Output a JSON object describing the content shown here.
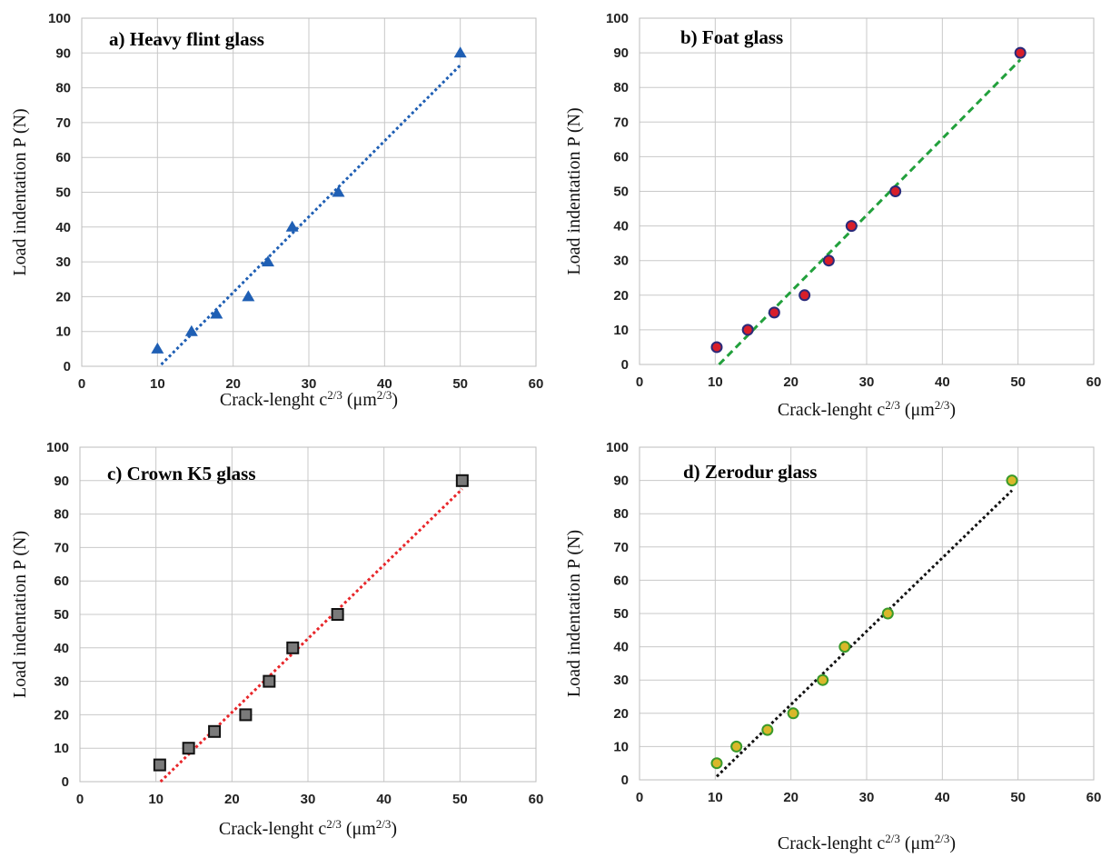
{
  "chart_data": [
    {
      "type": "scatter",
      "title": "a) Heavy flint glass",
      "xlabel": "Crack-lenght c",
      "xlabel_sup": "2/3",
      "xlabel_unit": " (μm",
      "xlabel_unit_sup": "2/3",
      "xlabel_close": ")",
      "ylabel": "Load indentation  P (N)",
      "xlim": [
        0,
        60
      ],
      "ylim": [
        0,
        100
      ],
      "xticks": [
        "0",
        "10",
        "20",
        "30",
        "40",
        "50",
        "60"
      ],
      "yticks": [
        "0",
        "10",
        "20",
        "30",
        "40",
        "50",
        "60",
        "70",
        "80",
        "90",
        "100"
      ],
      "grid": true,
      "marker": "triangle",
      "marker_color": "#1f5fb4",
      "trend_color": "#1f5fb4",
      "series": [
        {
          "x": [
            10,
            14.5,
            17.8,
            22,
            24.6,
            27.8,
            33.9,
            50
          ],
          "y": [
            5,
            10,
            15,
            20,
            30,
            40,
            50,
            90
          ]
        }
      ],
      "trendline": {
        "x": [
          10.5,
          50
        ],
        "y": [
          0.5,
          86.5
        ]
      }
    },
    {
      "type": "scatter",
      "title": "b) Foat glass",
      "xlabel": "Crack-lenght c",
      "xlabel_sup": "2/3",
      "xlabel_unit": " (μm",
      "xlabel_unit_sup": "2/3",
      "xlabel_close": ")",
      "ylabel": "Load indentation  P (N)",
      "xlim": [
        0,
        60
      ],
      "ylim": [
        0,
        100
      ],
      "xticks": [
        "0",
        "10",
        "20",
        "30",
        "40",
        "50",
        "60"
      ],
      "yticks": [
        "0",
        "10",
        "20",
        "30",
        "40",
        "50",
        "60",
        "70",
        "80",
        "90",
        "100"
      ],
      "grid": true,
      "marker": "circle",
      "marker_color": "#d81e2a",
      "marker_edge": "#2a2a7a",
      "trend_color": "#22a03c",
      "series": [
        {
          "x": [
            10.2,
            14.3,
            17.8,
            21.8,
            25,
            28,
            33.8,
            50.3
          ],
          "y": [
            5,
            10,
            15,
            20,
            30,
            40,
            50,
            90
          ]
        }
      ],
      "trendline": {
        "x": [
          10.5,
          50.3
        ],
        "y": [
          0,
          88
        ]
      }
    },
    {
      "type": "scatter",
      "title": "c) Crown K5 glass",
      "xlabel": "Crack-lenght c",
      "xlabel_sup": "2/3",
      "xlabel_unit": " (μm",
      "xlabel_unit_sup": "2/3",
      "xlabel_close": ")",
      "ylabel": "Load indentation  P (N)",
      "xlim": [
        0,
        60
      ],
      "ylim": [
        0,
        100
      ],
      "xticks": [
        "0",
        "10",
        "20",
        "30",
        "40",
        "50",
        "60"
      ],
      "yticks": [
        "0",
        "10",
        "20",
        "30",
        "40",
        "50",
        "60",
        "70",
        "80",
        "90",
        "100"
      ],
      "grid": true,
      "marker": "square",
      "marker_color": "#7a7a7a",
      "marker_edge": "#111111",
      "trend_color": "#e8262a",
      "series": [
        {
          "x": [
            10.5,
            14.3,
            17.7,
            21.8,
            24.9,
            28,
            33.9,
            50.3
          ],
          "y": [
            5,
            10,
            15,
            20,
            30,
            40,
            50,
            90
          ]
        }
      ],
      "trendline": {
        "x": [
          10.6,
          50.3
        ],
        "y": [
          0,
          87.5
        ]
      }
    },
    {
      "type": "scatter",
      "title": "d) Zerodur glass",
      "xlabel": "Crack-lenght c",
      "xlabel_sup": "2/3",
      "xlabel_unit": " (μm",
      "xlabel_unit_sup": "2/3",
      "xlabel_close": ")",
      "ylabel": "Load indentation  P (N)",
      "xlim": [
        0,
        60
      ],
      "ylim": [
        0,
        100
      ],
      "xticks": [
        "0",
        "10",
        "20",
        "30",
        "40",
        "50",
        "60"
      ],
      "yticks": [
        "0",
        "10",
        "20",
        "30",
        "40",
        "50",
        "60",
        "70",
        "80",
        "90",
        "100"
      ],
      "grid": true,
      "marker": "circle",
      "marker_color": "#d9b82a",
      "marker_edge": "#3a9a2a",
      "trend_color": "#111111",
      "series": [
        {
          "x": [
            10.2,
            12.8,
            16.9,
            20.3,
            24.2,
            27.1,
            32.8,
            49.2
          ],
          "y": [
            5,
            10,
            15,
            20,
            30,
            40,
            50,
            90
          ]
        }
      ],
      "trendline": {
        "x": [
          10.2,
          49.2
        ],
        "y": [
          1,
          87
        ]
      }
    }
  ]
}
